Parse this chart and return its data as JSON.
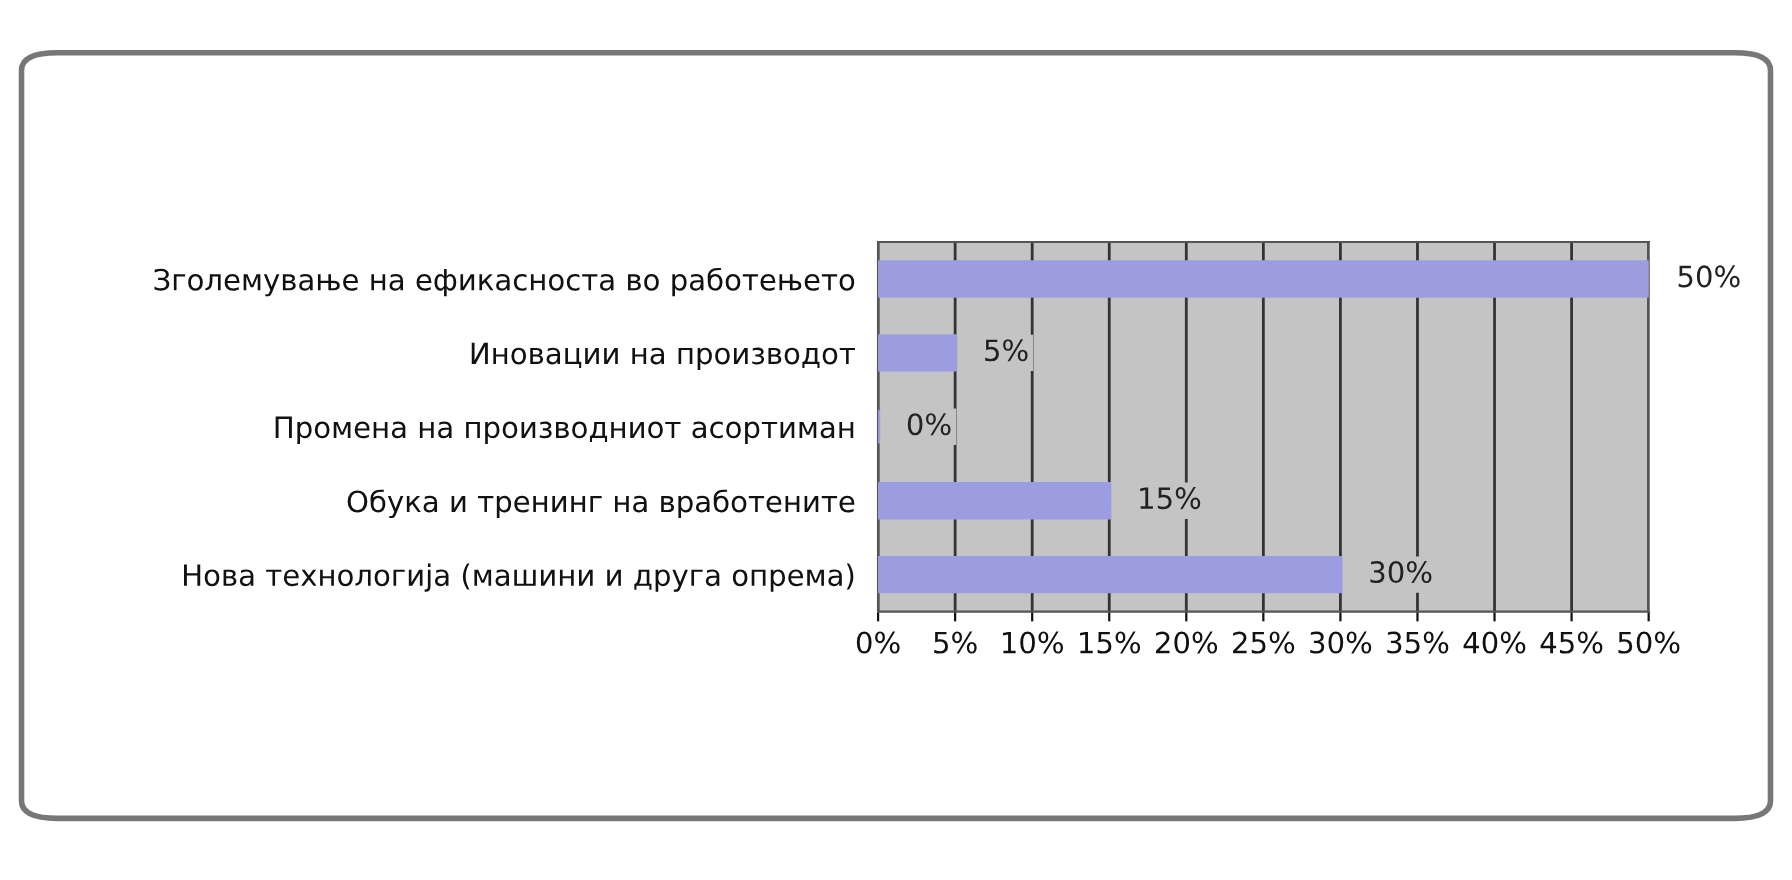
{
  "chart_data": {
    "type": "bar",
    "orientation": "horizontal",
    "categories": [
      "Зголемување на ефикасноста во работењето",
      "Иновации на производот",
      "Промена на производниот асортиман",
      "Обука и тренинг на вработените",
      "Нова технологија (машини и друга опрема)"
    ],
    "values": [
      50,
      5,
      0,
      15,
      30
    ],
    "color": "#9c9ce0",
    "value_labels": [
      "50%",
      "5%",
      "0%",
      "15%",
      "30%"
    ],
    "xlim": [
      0,
      50
    ],
    "xticks": [
      {
        "value": 0,
        "label": "0%"
      },
      {
        "value": 5,
        "label": "5%"
      },
      {
        "value": 10,
        "label": "10%"
      },
      {
        "value": 15,
        "label": "15%"
      },
      {
        "value": 20,
        "label": "20%"
      },
      {
        "value": 25,
        "label": "25%"
      },
      {
        "value": 30,
        "label": "30%"
      },
      {
        "value": 35,
        "label": "35%"
      },
      {
        "value": 40,
        "label": "40%"
      },
      {
        "value": 45,
        "label": "45%"
      },
      {
        "value": 50,
        "label": "50%"
      }
    ],
    "grid": "x"
  }
}
